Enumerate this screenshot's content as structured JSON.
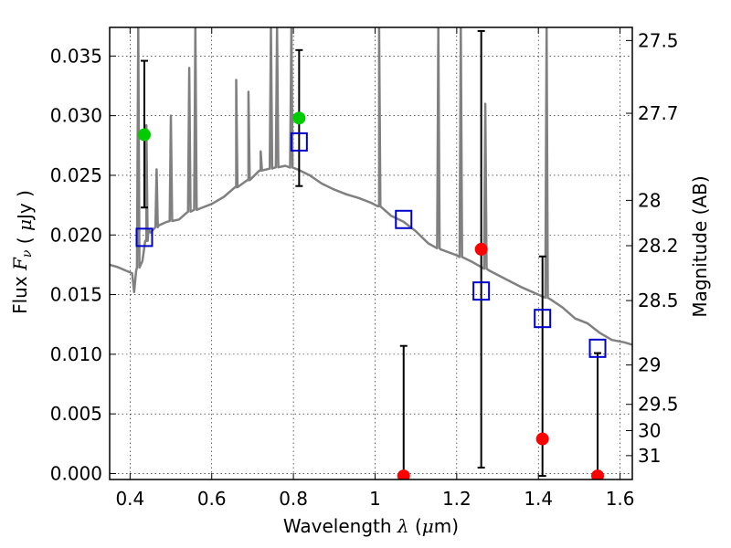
{
  "chart_data": {
    "type": "scatter",
    "xlabel": "Wavelength",
    "xlabel_math": "λ",
    "xlabel_unit_open": "(",
    "xlabel_unit_math": "μ",
    "xlabel_unit_rest": "m)",
    "ylabel": "Flux",
    "ylabel_math": "F",
    "ylabel_sub": "ν",
    "ylabel_unit_open": "(",
    "ylabel_unit_math": "μ",
    "ylabel_unit_rest": "Jy )",
    "y2label": "Magnitude (AB)",
    "xlim": [
      0.35,
      1.63
    ],
    "ylim": [
      -0.0005,
      0.0374
    ],
    "grid": true,
    "x_ticks": [
      0.4,
      0.6,
      0.8,
      1.0,
      1.2,
      1.4,
      1.6
    ],
    "x_tick_labels": [
      "0.4",
      "0.6",
      "0.8",
      "1",
      "1.2",
      "1.4",
      "1.6"
    ],
    "y_ticks": [
      0.0,
      0.005,
      0.01,
      0.015,
      0.02,
      0.025,
      0.03,
      0.035
    ],
    "y_tick_labels": [
      "0.000",
      "0.005",
      "0.010",
      "0.015",
      "0.020",
      "0.025",
      "0.030",
      "0.035"
    ],
    "mag_ticks": [
      {
        "label": "27.5",
        "flux": 0.0363
      },
      {
        "label": "27.7",
        "flux": 0.0302
      },
      {
        "label": "28",
        "flux": 0.0229
      },
      {
        "label": "28.2",
        "flux": 0.0191
      },
      {
        "label": "28.5",
        "flux": 0.0145
      },
      {
        "label": "29",
        "flux": 0.0091
      },
      {
        "label": "29.5",
        "flux": 0.0058
      },
      {
        "label": "30",
        "flux": 0.0036
      },
      {
        "label": "31",
        "flux": 0.0015
      }
    ],
    "series": [
      {
        "kind": "model-spectrum",
        "color": "#808080",
        "points": [
          [
            0.35,
            0.0175
          ],
          [
            0.37,
            0.0173
          ],
          [
            0.39,
            0.017
          ],
          [
            0.405,
            0.0168
          ],
          [
            0.41,
            0.0152
          ],
          [
            0.415,
            0.017
          ],
          [
            0.43,
            0.0178
          ],
          [
            0.44,
            0.0195
          ],
          [
            0.445,
            0.0205
          ],
          [
            0.45,
            0.0202
          ],
          [
            0.47,
            0.0208
          ],
          [
            0.49,
            0.0211
          ],
          [
            0.52,
            0.0213
          ],
          [
            0.54,
            0.0219
          ],
          [
            0.57,
            0.0222
          ],
          [
            0.6,
            0.0226
          ],
          [
            0.63,
            0.0232
          ],
          [
            0.66,
            0.024
          ],
          [
            0.69,
            0.0246
          ],
          [
            0.72,
            0.0254
          ],
          [
            0.75,
            0.0256
          ],
          [
            0.78,
            0.0258
          ],
          [
            0.81,
            0.0255
          ],
          [
            0.84,
            0.025
          ],
          [
            0.87,
            0.0243
          ],
          [
            0.9,
            0.0238
          ],
          [
            0.93,
            0.0234
          ],
          [
            0.96,
            0.0231
          ],
          [
            0.99,
            0.0227
          ],
          [
            1.01,
            0.0224
          ],
          [
            1.04,
            0.0216
          ],
          [
            1.07,
            0.0211
          ],
          [
            1.1,
            0.0203
          ],
          [
            1.13,
            0.0193
          ],
          [
            1.16,
            0.0188
          ],
          [
            1.2,
            0.0183
          ],
          [
            1.24,
            0.0177
          ],
          [
            1.28,
            0.017
          ],
          [
            1.32,
            0.0163
          ],
          [
            1.36,
            0.0156
          ],
          [
            1.4,
            0.015
          ],
          [
            1.43,
            0.0146
          ],
          [
            1.46,
            0.0139
          ],
          [
            1.49,
            0.013
          ],
          [
            1.52,
            0.0126
          ],
          [
            1.55,
            0.0118
          ],
          [
            1.58,
            0.0112
          ],
          [
            1.61,
            0.011
          ],
          [
            1.63,
            0.0108
          ]
        ],
        "emission_lines": [
          {
            "x": 0.42,
            "peak": 0.0374
          },
          {
            "x": 0.44,
            "peak": 0.0292
          },
          {
            "x": 0.465,
            "peak": 0.0255
          },
          {
            "x": 0.5,
            "peak": 0.03
          },
          {
            "x": 0.545,
            "peak": 0.034
          },
          {
            "x": 0.56,
            "peak": 0.0374
          },
          {
            "x": 0.66,
            "peak": 0.033
          },
          {
            "x": 0.69,
            "peak": 0.032
          },
          {
            "x": 0.72,
            "peak": 0.027
          },
          {
            "x": 0.745,
            "peak": 0.0374
          },
          {
            "x": 0.76,
            "peak": 0.0374
          },
          {
            "x": 0.795,
            "peak": 0.0374
          },
          {
            "x": 1.01,
            "peak": 0.0374
          },
          {
            "x": 1.155,
            "peak": 0.0374
          },
          {
            "x": 1.21,
            "peak": 0.0374
          },
          {
            "x": 1.27,
            "peak": 0.031
          },
          {
            "x": 1.42,
            "peak": 0.0374
          }
        ]
      },
      {
        "kind": "model-photometry",
        "marker": "square",
        "color": "#0000cc",
        "points": [
          {
            "x": 0.435,
            "y": 0.0198
          },
          {
            "x": 0.814,
            "y": 0.0278
          },
          {
            "x": 1.07,
            "y": 0.0213
          },
          {
            "x": 1.26,
            "y": 0.0153
          },
          {
            "x": 1.41,
            "y": 0.013
          },
          {
            "x": 1.545,
            "y": 0.0105
          }
        ]
      },
      {
        "kind": "observed-detections",
        "marker": "circle",
        "color": "#00cc00",
        "points": [
          {
            "x": 0.435,
            "y": 0.0284,
            "err_low": 0.0223,
            "err_high": 0.0346
          },
          {
            "x": 0.814,
            "y": 0.0298,
            "err_low": 0.0241,
            "err_high": 0.0355
          }
        ]
      },
      {
        "kind": "observed-nondetections",
        "marker": "circle",
        "color": "#ff0000",
        "points": [
          {
            "x": 1.07,
            "y": -0.0002,
            "err_low": -0.0002,
            "err_high": 0.0107
          },
          {
            "x": 1.26,
            "y": 0.0188,
            "err_low": 0.0005,
            "err_high": 0.0371
          },
          {
            "x": 1.41,
            "y": 0.0029,
            "err_low": -0.0002,
            "err_high": 0.0182
          },
          {
            "x": 1.545,
            "y": -0.0002,
            "err_low": -0.0002,
            "err_high": 0.0101
          }
        ]
      }
    ]
  }
}
